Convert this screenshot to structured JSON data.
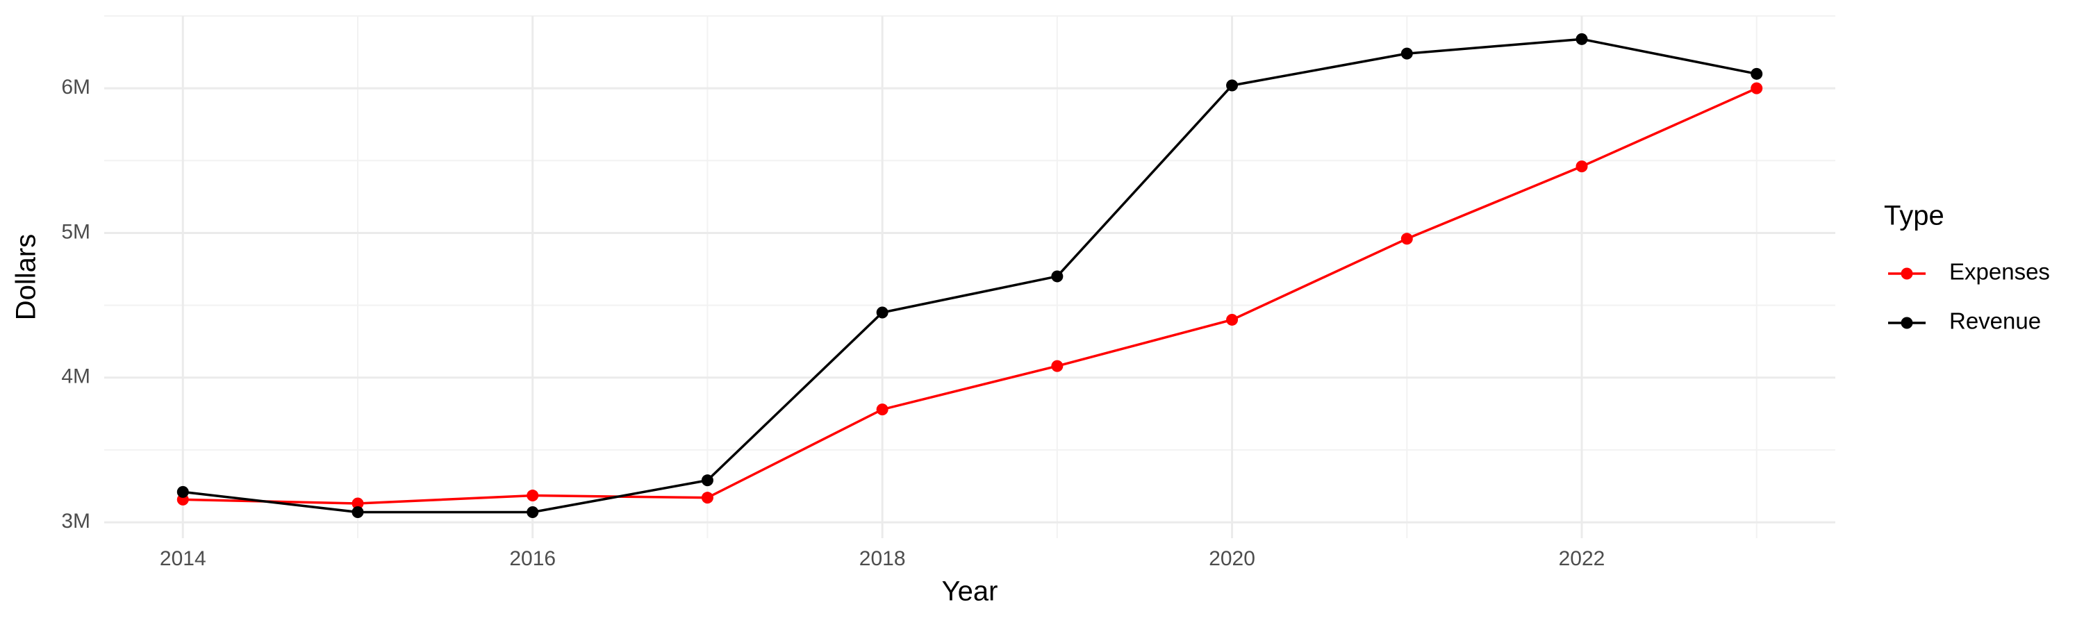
{
  "chart_data": {
    "type": "line",
    "x_label": "Year",
    "y_label": "Dollars",
    "legend_title": "Type",
    "legend": "right",
    "grid": true,
    "x": [
      2014,
      2015,
      2016,
      2017,
      2018,
      2019,
      2020,
      2021,
      2022,
      2023
    ],
    "series": [
      {
        "name": "Expenses",
        "color": "#ff0000",
        "values": [
          3157000,
          3130000,
          3185000,
          3170000,
          3780000,
          4080000,
          4400000,
          4960000,
          5460000,
          6000000
        ]
      },
      {
        "name": "Revenue",
        "color": "#000000",
        "values": [
          3210000,
          3070000,
          3070000,
          3290000,
          4450000,
          4700000,
          6020000,
          6240000,
          6340000,
          6100000
        ]
      }
    ],
    "xlim": [
      2013.55,
      2023.45
    ],
    "xticks": [
      2014,
      2016,
      2018,
      2020,
      2022
    ],
    "ylim": [
      2890000,
      6500000
    ],
    "yticks": [
      {
        "value": 3000000,
        "label": "3M"
      },
      {
        "value": 4000000,
        "label": "4M"
      },
      {
        "value": 5000000,
        "label": "5M"
      },
      {
        "value": 6000000,
        "label": "6M"
      }
    ]
  }
}
